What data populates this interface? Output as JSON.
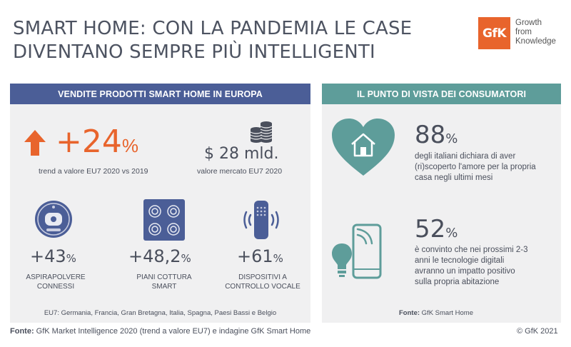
{
  "title": {
    "line1": "SMART HOME: CON LA PANDEMIA LE CASE",
    "line2": "DIVENTANO SEMPRE PIÙ INTELLIGENTI"
  },
  "logo": {
    "mark": "GfK",
    "tagline": [
      "Growth",
      "from",
      "Knowledge"
    ]
  },
  "left_panel": {
    "header": "VENDITE PRODOTTI SMART HOME IN EUROPA",
    "growth": {
      "value": "+24",
      "unit": "%",
      "caption": "trend a valore EU7 2020 vs 2019"
    },
    "market": {
      "value": "$ 28 mld.",
      "caption": "valore mercato EU7 2020"
    },
    "products": [
      {
        "value": "+43",
        "unit": "%",
        "caption_line1": "ASPIRAPOLVERE",
        "caption_line2": "CONNESSI",
        "icon": "robot-vacuum-icon"
      },
      {
        "value": "+48,2",
        "unit": "%",
        "caption_line1": "PIANI COTTURA",
        "caption_line2": "SMART",
        "icon": "cooktop-icon"
      },
      {
        "value": "+61",
        "unit": "%",
        "caption_line1": "DISPOSITIVI A",
        "caption_line2": "CONTROLLO VOCALE",
        "icon": "smart-speaker-icon"
      }
    ],
    "footnote": "EU7: Germania, Francia, Gran Bretagna, Italia, Spagna, Paesi Bassi e Belgio"
  },
  "right_panel": {
    "header": "IL PUNTO DI VISTA DEI CONSUMATORI",
    "stats": [
      {
        "value": "88",
        "unit": "%",
        "lines": [
          "degli italiani dichiara di aver",
          "(ri)scoperto l'amore per la propria",
          "casa negli ultimi mesi"
        ],
        "icon": "heart-house-icon"
      },
      {
        "value": "52",
        "unit": "%",
        "lines": [
          "è convinto che nei prossimi 2-3",
          "anni le tecnologie digitali",
          "avranno un impatto positivo",
          "sulla propria abitazione"
        ],
        "icon": "phone-bulb-icon"
      }
    ],
    "source_label": "Fonte:",
    "source_text": "GfK Smart Home"
  },
  "footer": {
    "source_label": "Fonte:",
    "source_text": "GfK Market Intelligence 2020 (trend a valore EU7) e indagine GfK Smart Home",
    "copyright": "© GfK 2021"
  },
  "colors": {
    "accent": "#e8642c",
    "blue": "#4b5e97",
    "teal": "#5e9d9a",
    "panel": "#f0f0f1"
  }
}
